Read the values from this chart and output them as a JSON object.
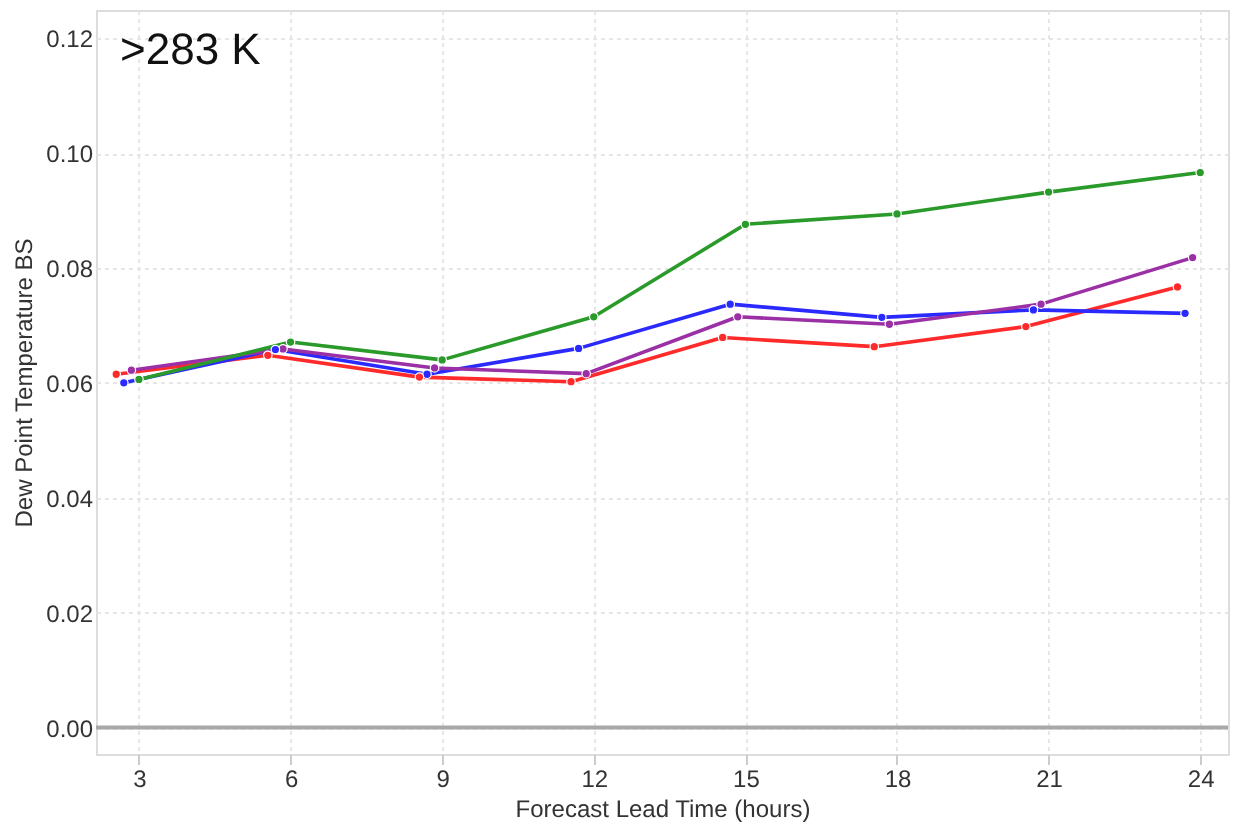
{
  "chart_data": {
    "type": "line",
    "xlabel": "Forecast Lead Time (hours)",
    "ylabel": "Dew Point Temperature BS",
    "annotations": [
      ">283 K"
    ],
    "series": [
      {
        "color": "#ff2a2a",
        "x": [
          2.55,
          5.55,
          8.55,
          11.55,
          14.55,
          17.55,
          20.55,
          23.55
        ],
        "values": [
          0.0615,
          0.0648,
          0.061,
          0.0602,
          0.0679,
          0.0663,
          0.0698,
          0.0767
        ]
      },
      {
        "color": "#2a2aff",
        "x": [
          2.7,
          5.7,
          8.7,
          11.7,
          14.7,
          17.7,
          20.7,
          23.7
        ],
        "values": [
          0.06,
          0.0658,
          0.0615,
          0.066,
          0.0737,
          0.0714,
          0.0727,
          0.0721
        ]
      },
      {
        "color": "#9b2fa6",
        "x": [
          2.85,
          5.85,
          8.85,
          11.85,
          14.85,
          17.85,
          20.85,
          23.85
        ],
        "values": [
          0.0622,
          0.0659,
          0.0626,
          0.0616,
          0.0715,
          0.0702,
          0.0737,
          0.0818
        ]
      },
      {
        "color": "#2a9a2a",
        "x": [
          3,
          6,
          9,
          12,
          15,
          18,
          21,
          24
        ],
        "values": [
          0.0606,
          0.0671,
          0.064,
          0.0715,
          0.0876,
          0.0894,
          0.0932,
          0.0966
        ]
      }
    ],
    "xlim": [
      2.15,
      24.55
    ],
    "xticks": [
      3,
      6,
      9,
      12,
      15,
      18,
      21,
      24
    ],
    "ylim": [
      -0.0046,
      0.1249
    ],
    "yticks": [
      {
        "value": 0,
        "label": "0.00"
      },
      {
        "value": 0.02,
        "label": "0.02"
      },
      {
        "value": 0.04,
        "label": "0.04"
      },
      {
        "value": 0.06,
        "label": "0.06"
      },
      {
        "value": 0.08,
        "label": "0.08"
      },
      {
        "value": 0.1,
        "label": "0.10"
      },
      {
        "value": 0.12,
        "label": "0.12"
      }
    ],
    "ref_lines": [
      {
        "axis": "y",
        "value": 0,
        "color": "#a8a8a8"
      }
    ],
    "grid": true,
    "marker": "circle",
    "line_style": "solid"
  }
}
